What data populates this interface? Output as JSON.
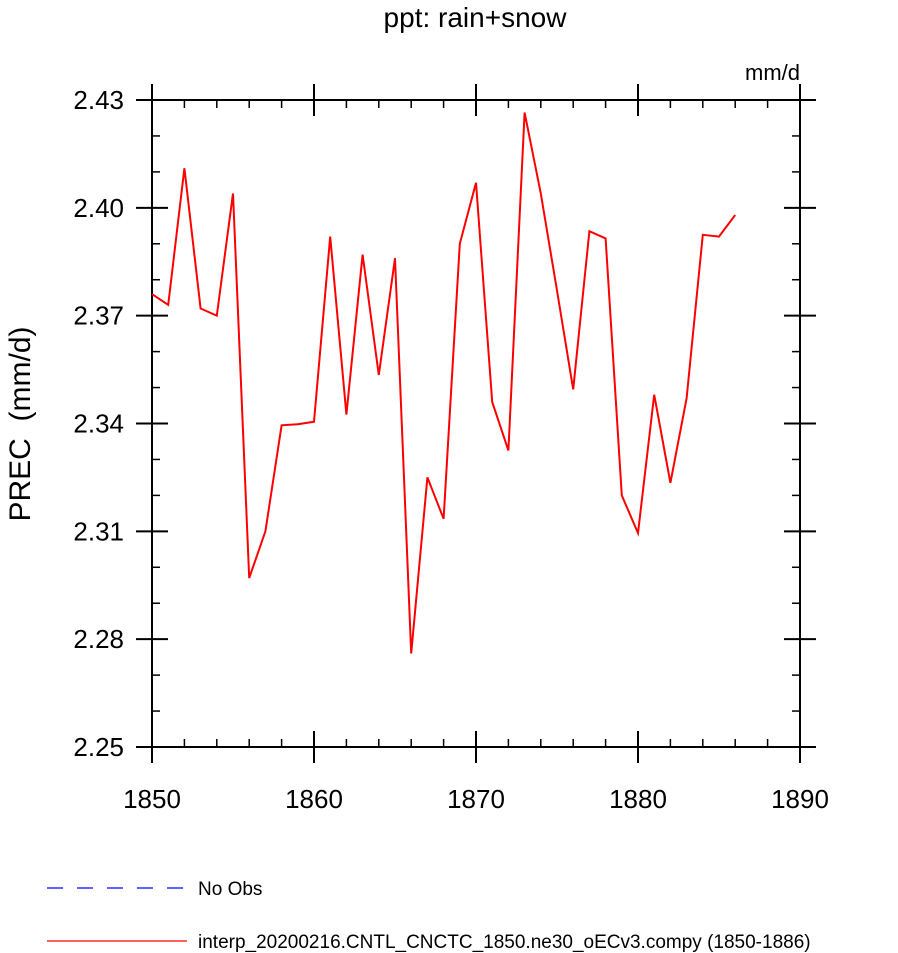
{
  "chart_data": {
    "type": "line",
    "title": "ppt: rain+snow",
    "units": "mm/d",
    "ylabel": "PREC  (mm/d)",
    "xlabel": "",
    "xlim": [
      1850,
      1890
    ],
    "ylim": [
      2.25,
      2.43
    ],
    "xticks": [
      1850,
      1860,
      1870,
      1880,
      1890
    ],
    "xtick_labels": [
      "1850",
      "1860",
      "1870",
      "1880",
      "1890"
    ],
    "yticks": [
      2.25,
      2.28,
      2.31,
      2.34,
      2.37,
      2.4,
      2.43
    ],
    "ytick_labels": [
      "2.25",
      "2.28",
      "2.31",
      "2.34",
      "2.37",
      "2.40",
      "2.43"
    ],
    "grid": false,
    "legend_position": "bottom-left",
    "series": [
      {
        "name": "interp_20200216.CNTL_CNCTC_1850.ne30_oECv3.compy (1850-1886)",
        "color": "#ff0000",
        "style": "solid",
        "x": [
          1850,
          1851,
          1852,
          1853,
          1854,
          1855,
          1856,
          1857,
          1858,
          1859,
          1860,
          1861,
          1862,
          1863,
          1864,
          1865,
          1866,
          1867,
          1868,
          1869,
          1870,
          1871,
          1872,
          1873,
          1874,
          1875,
          1876,
          1877,
          1878,
          1879,
          1880,
          1881,
          1882,
          1883,
          1884,
          1885,
          1886
        ],
        "y": [
          2.376,
          2.373,
          2.411,
          2.372,
          2.37,
          2.404,
          2.297,
          2.31,
          2.3395,
          2.3398,
          2.3405,
          2.392,
          2.3425,
          2.387,
          2.3535,
          2.386,
          2.276,
          2.325,
          2.3135,
          2.39,
          2.407,
          2.346,
          2.3325,
          2.4265,
          2.404,
          2.377,
          2.3495,
          2.3935,
          2.3915,
          2.32,
          2.3095,
          2.348,
          2.3235,
          2.347,
          2.3925,
          2.392,
          2.398
        ]
      },
      {
        "name": "No Obs",
        "color": "#0000ff",
        "style": "dashed",
        "x": [],
        "y": []
      }
    ]
  }
}
